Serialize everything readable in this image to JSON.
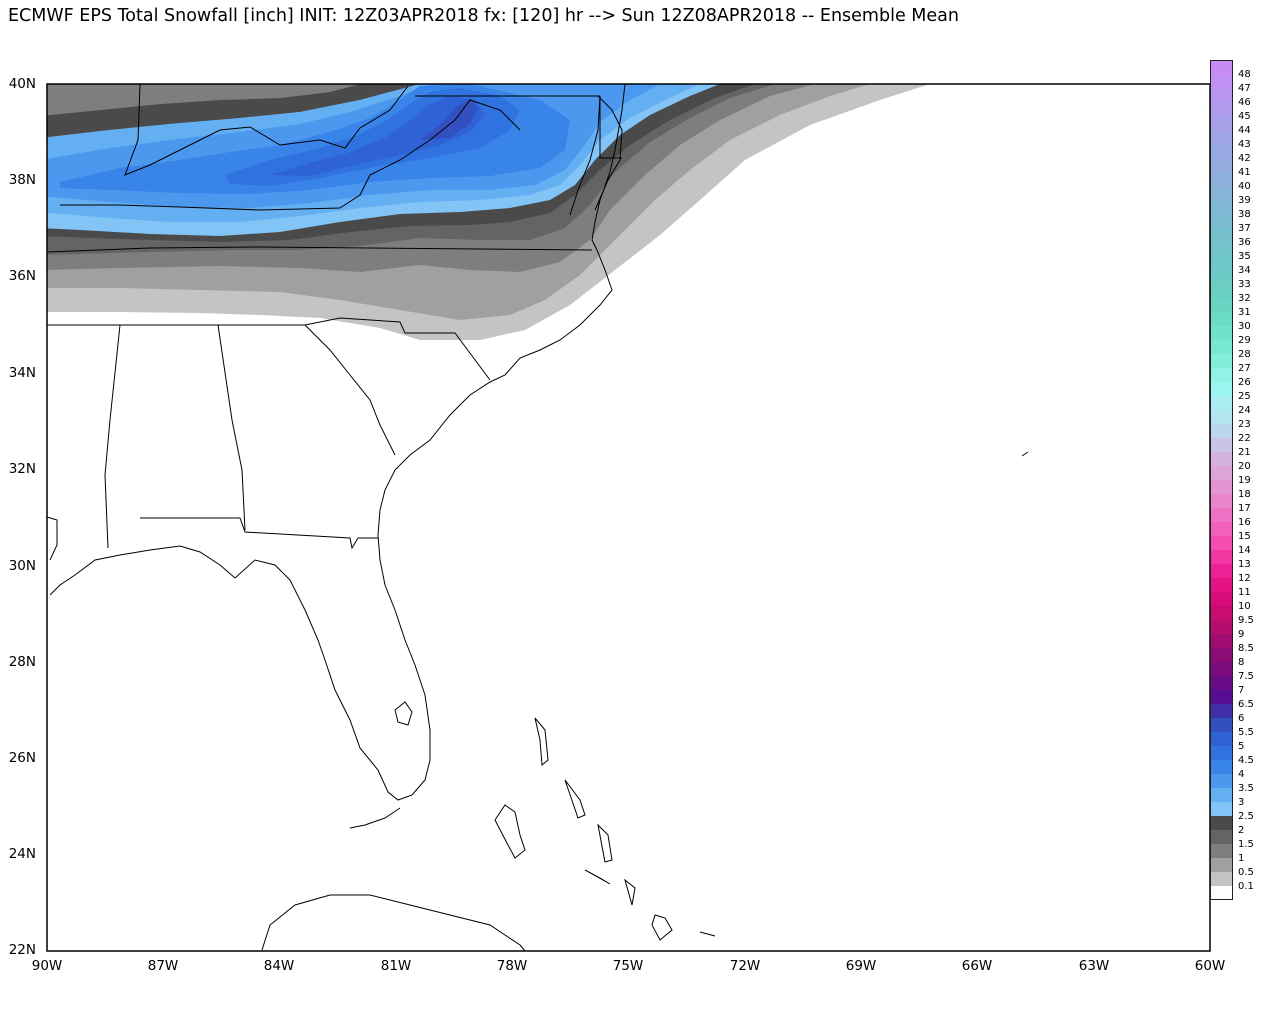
{
  "title": "ECMWF EPS Total Snowfall [inch] INIT: 12Z03APR2018 fx: [120] hr --> Sun 12Z08APR2018 -- Ensemble Mean",
  "lat_labels": [
    "40N",
    "38N",
    "36N",
    "34N",
    "32N",
    "30N",
    "28N",
    "26N",
    "24N",
    "22N"
  ],
  "lon_labels": [
    "90W",
    "87W",
    "84W",
    "81W",
    "78W",
    "75W",
    "72W",
    "69W",
    "66W",
    "63W",
    "60W"
  ],
  "map_extent": {
    "lon_min": -90,
    "lon_max": -60,
    "lat_min": 22,
    "lat_max": 40
  },
  "colorbar": {
    "levels": [
      "48",
      "47",
      "46",
      "45",
      "44",
      "43",
      "42",
      "41",
      "40",
      "39",
      "38",
      "37",
      "36",
      "35",
      "34",
      "33",
      "32",
      "31",
      "30",
      "29",
      "28",
      "27",
      "26",
      "25",
      "24",
      "23",
      "22",
      "21",
      "20",
      "19",
      "18",
      "17",
      "16",
      "15",
      "14",
      "13",
      "12",
      "11",
      "10",
      "9.5",
      "9",
      "8.5",
      "8",
      "7.5",
      "7",
      "6.5",
      "6",
      "5.5",
      "5",
      "4.5",
      "4",
      "3.5",
      "3",
      "2.5",
      "2",
      "1.5",
      "1",
      "0.5",
      "0.1"
    ],
    "colors": [
      "#c88af5",
      "#c090f2",
      "#b896ef",
      "#b09aec",
      "#a79fe8",
      "#a0a4e5",
      "#98a8e2",
      "#92acde",
      "#8cb0db",
      "#86b4d8",
      "#80b8d4",
      "#7bbcd1",
      "#76c0ce",
      "#72c4ca",
      "#6ec7c7",
      "#6ccbc4",
      "#6ad0c2",
      "#6ad5c3",
      "#6cdbc6",
      "#70e1ca",
      "#78e8d2",
      "#84eedc",
      "#90f3e6",
      "#9cf4ee",
      "#aaeef2",
      "#b4e6f2",
      "#bcd6ec",
      "#c8c4e4",
      "#d4b2dc",
      "#dca4d8",
      "#e494d2",
      "#ea84cc",
      "#ee72c4",
      "#f260ba",
      "#f44caf",
      "#f236a2",
      "#ee2294",
      "#e41284",
      "#d80c78",
      "#c80c72",
      "#b60c6e",
      "#a00c70",
      "#8c0c76",
      "#7a0c7e",
      "#680c88",
      "#560e92",
      "#3f2ea6",
      "#3350c0",
      "#2f62d4",
      "#3072e0",
      "#3884e8",
      "#4c98ee",
      "#64aef2",
      "#82c4f6",
      "#4a4a4a",
      "#646464",
      "#7e7e7e",
      "#a0a0a0",
      "#c4c4c4"
    ]
  },
  "snowfall_levels_shown": [
    "0.1",
    "0.5",
    "1",
    "1.5",
    "2",
    "2.5",
    "3",
    "3.5",
    "4",
    "4.5",
    "5"
  ]
}
